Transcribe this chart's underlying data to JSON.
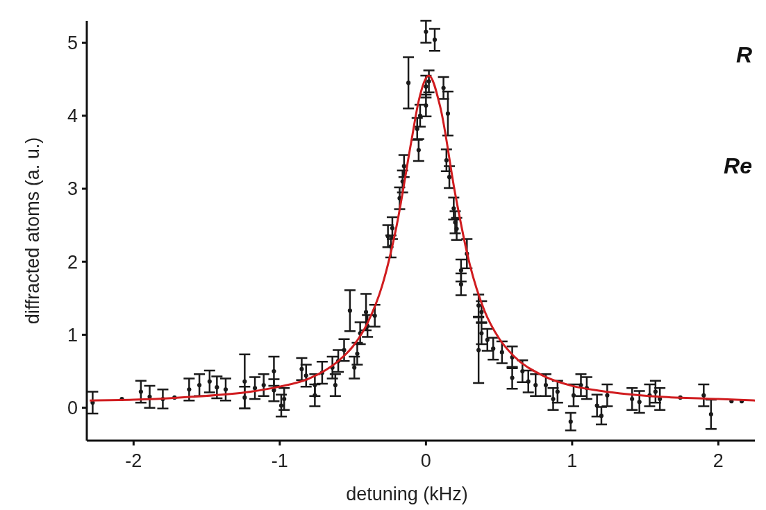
{
  "chart_data": {
    "type": "scatter",
    "xlabel": "detuning (kHz)",
    "ylabel": "diffracted atoms (a. u.)",
    "xlim": [
      -2.32,
      2.25
    ],
    "ylim": [
      -0.45,
      5.3
    ],
    "xticks": [
      -2,
      -1,
      0,
      1,
      2
    ],
    "yticks": [
      0,
      1,
      2,
      3,
      4,
      5
    ],
    "grid": false,
    "marker": "circle",
    "annotations": [
      "R",
      "Re"
    ],
    "series": [
      {
        "color": "#1a1a1a",
        "x": [
          -2.28,
          -2.08,
          -1.95,
          -1.89,
          -1.8,
          -1.72,
          -1.62,
          -1.55,
          -1.48,
          -1.43,
          -1.37,
          -1.24,
          -1.24,
          -1.17,
          -1.11,
          -1.04,
          -1.04,
          -0.99,
          -0.97,
          -0.85,
          -0.82,
          -0.76,
          -0.76,
          -0.71,
          -0.64,
          -0.62,
          -0.6,
          -0.56,
          -0.52,
          -0.49,
          -0.47,
          -0.45,
          -0.41,
          -0.4,
          -0.35,
          -0.26,
          -0.24,
          -0.23,
          -0.18,
          -0.16,
          -0.15,
          -0.12,
          -0.06,
          -0.05,
          -0.04,
          0,
          0,
          0,
          0.02,
          0.06,
          0.12,
          0.14,
          0.15,
          0.16,
          0.19,
          0.2,
          0.21,
          0.24,
          0.24,
          0.28,
          0.36,
          0.36,
          0.38,
          0.38,
          0.42,
          0.46,
          0.52,
          0.59,
          0.59,
          0.66,
          0.7,
          0.75,
          0.82,
          0.87,
          0.9,
          0.99,
          1.01,
          1.06,
          1.1,
          1.17,
          1.2,
          1.24,
          1.41,
          1.46,
          1.53,
          1.57,
          1.6,
          1.74,
          1.9,
          1.95,
          2.09,
          2.16
        ],
        "values": [
          0.07,
          0.12,
          0.22,
          0.15,
          0.12,
          0.14,
          0.25,
          0.31,
          0.36,
          0.28,
          0.25,
          0.36,
          0.14,
          0.27,
          0.31,
          0.5,
          0.24,
          0.03,
          0.12,
          0.53,
          0.44,
          0.31,
          0.17,
          0.48,
          0.55,
          0.31,
          0.64,
          0.79,
          1.33,
          0.55,
          0.74,
          1.02,
          1.31,
          1.12,
          1.26,
          2.35,
          2.21,
          2.46,
          2.87,
          3.1,
          3.31,
          4.45,
          3.82,
          3.53,
          4,
          5.15,
          4.14,
          4.4,
          4.47,
          5.04,
          4.38,
          3.39,
          4.03,
          3.16,
          2.73,
          2.54,
          2.45,
          1.88,
          1.69,
          2.11,
          1.4,
          0.79,
          1.31,
          1.02,
          0.93,
          0.81,
          0.76,
          0.69,
          0.41,
          0.5,
          0.36,
          0.31,
          0.31,
          0.12,
          0.22,
          -0.19,
          0.17,
          0.31,
          0.27,
          0.03,
          -0.11,
          0.17,
          0.12,
          0.08,
          0.17,
          0.22,
          0.12,
          0.14,
          0.17,
          -0.09,
          0.09,
          0.09
        ],
        "errors": [
          0.15,
          null,
          0.15,
          0.15,
          0.13,
          null,
          0.15,
          0.15,
          0.15,
          0.15,
          0.15,
          0.37,
          0.15,
          0.15,
          0.15,
          0.2,
          0.15,
          0.15,
          0.15,
          0.15,
          0.15,
          0.15,
          0.15,
          0.15,
          0.15,
          0.15,
          0.15,
          0.15,
          0.28,
          0.15,
          0.15,
          0.15,
          0.25,
          0.15,
          0.15,
          0.15,
          0.15,
          0.15,
          0.15,
          0.15,
          0.15,
          0.35,
          0.15,
          0.15,
          0.15,
          0.15,
          0.15,
          0.15,
          0.15,
          0.15,
          0.15,
          0.15,
          0.3,
          0.15,
          0.15,
          0.15,
          0.15,
          0.15,
          0.15,
          0.2,
          0.15,
          0.45,
          0.15,
          0.15,
          0.15,
          0.15,
          0.15,
          0.15,
          0.15,
          0.15,
          0.15,
          0.15,
          0.15,
          0.15,
          0.15,
          0.12,
          0.15,
          0.15,
          0.15,
          0.15,
          0.12,
          0.15,
          0.15,
          0.15,
          0.15,
          0.15,
          0.15,
          null,
          0.15,
          0.2,
          null,
          null
        ]
      },
      {
        "type": "line",
        "color": "#d01c1f",
        "marker": "none",
        "x": [
          -2.3,
          -2,
          -1.6,
          -1.2,
          -1,
          -0.8,
          -0.6,
          -0.5,
          -0.4,
          -0.3,
          -0.2,
          -0.1,
          -0.05,
          0.02,
          0.1,
          0.2,
          0.3,
          0.4,
          0.5,
          0.6,
          0.8,
          1,
          1.2,
          1.6,
          2,
          2.25
        ],
        "values": [
          0.1,
          0.11,
          0.15,
          0.22,
          0.29,
          0.4,
          0.64,
          0.84,
          1.16,
          1.67,
          2.5,
          3.65,
          4.2,
          4.55,
          4.1,
          2.93,
          1.96,
          1.33,
          0.95,
          0.71,
          0.44,
          0.3,
          0.23,
          0.15,
          0.12,
          0.1
        ]
      }
    ]
  }
}
